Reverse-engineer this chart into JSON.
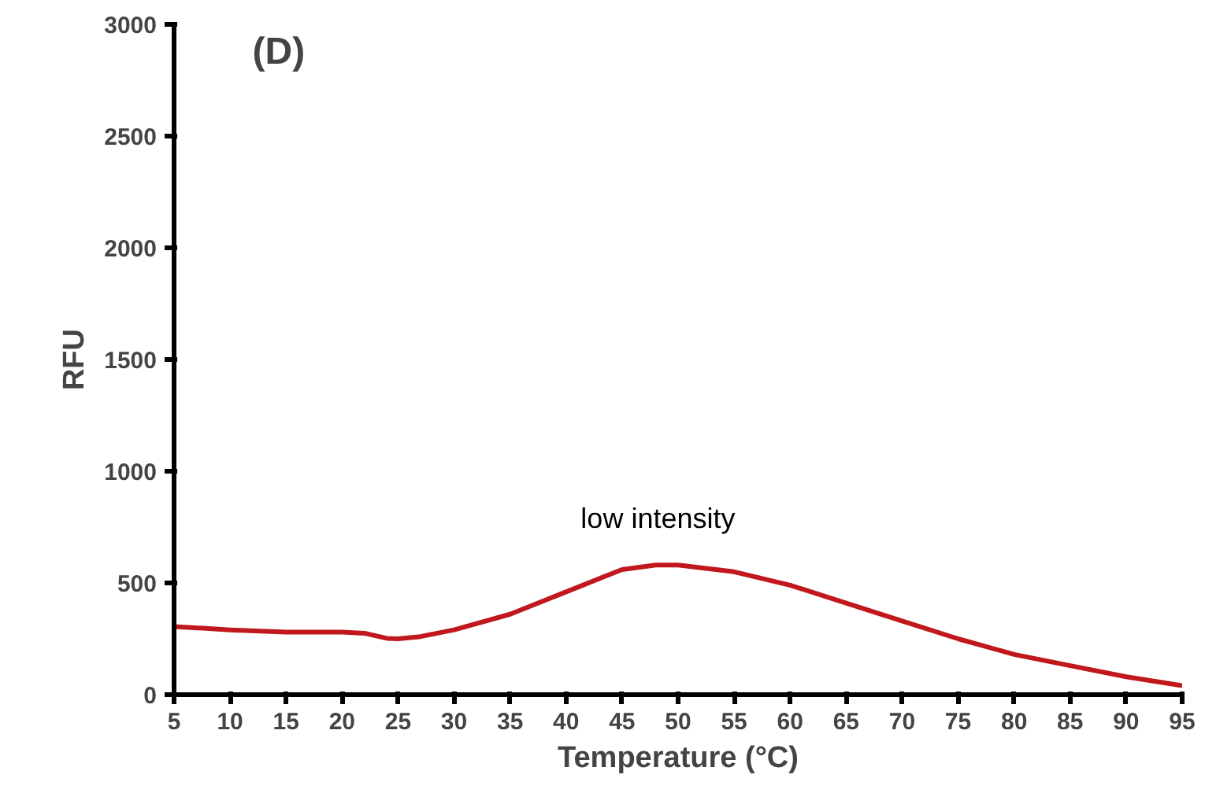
{
  "chart_data": {
    "type": "line",
    "title": "(D)",
    "xlabel": "Temperature (°C)",
    "ylabel": "RFU",
    "x": [
      5,
      10,
      15,
      20,
      22,
      24,
      25,
      27,
      30,
      35,
      40,
      45,
      48,
      50,
      55,
      60,
      65,
      70,
      75,
      80,
      85,
      90,
      95
    ],
    "series": [
      {
        "color": "#c0181c",
        "values": [
          305,
          290,
          280,
          280,
          275,
          252,
          250,
          260,
          290,
          360,
          460,
          560,
          580,
          580,
          550,
          490,
          410,
          330,
          250,
          180,
          130,
          80,
          40
        ]
      }
    ],
    "xlim": [
      5,
      95
    ],
    "ylim": [
      0,
      3000
    ],
    "xticks": [
      5,
      10,
      15,
      20,
      25,
      30,
      35,
      40,
      45,
      50,
      55,
      60,
      65,
      70,
      75,
      80,
      85,
      90,
      95
    ],
    "yticks": [
      0,
      500,
      1000,
      1500,
      2000,
      2500,
      3000
    ],
    "annotations": [
      "low intensity"
    ],
    "grid": false,
    "marker": "none",
    "line_style": "solid"
  }
}
